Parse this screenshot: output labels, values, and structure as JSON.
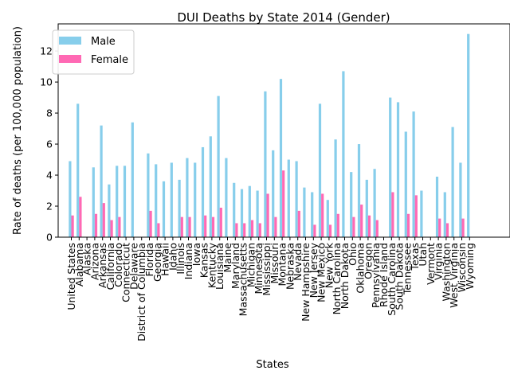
{
  "chart_data": {
    "type": "bar",
    "title": "DUI Deaths by State 2014 (Gender)",
    "xlabel": "States",
    "ylabel": "Rate of deaths (per 100,000 population)",
    "ylim": [
      0,
      13.75
    ],
    "yticks": [
      "0",
      "2",
      "4",
      "6",
      "8",
      "10",
      "12"
    ],
    "legend_position": "top-left",
    "grid": false,
    "colors": {
      "male": "#87ceeb",
      "female": "#ff69b4"
    },
    "categories": [
      "United States",
      "Alabama",
      "Alaska",
      "Arizona",
      "Arkansas",
      "California",
      "Colorado",
      "Connecticut",
      "Delaware",
      "District of Columbia",
      "Florida",
      "Georgia",
      "Hawaii",
      "Idaho",
      "Illinois",
      "Indiana",
      "Iowa",
      "Kansas",
      "Kentucky",
      "Louisiana",
      "Maine",
      "Maryland",
      "Massachusetts",
      "Michigan",
      "Minnesota",
      "Mississippi",
      "Missouri",
      "Montana",
      "Nebraska",
      "Nevada",
      "New Hampshire",
      "New Jersey",
      "New Mexico",
      "New York",
      "North Carolina",
      "North Dakota",
      "Ohio",
      "Oklahoma",
      "Oregon",
      "Pennsylvania",
      "Rhode Island",
      "South Carolina",
      "South Dakota",
      "Tennessee",
      "Texas",
      "Utah",
      "Vermont",
      "Virginia",
      "Washington",
      "West Virginia",
      "Wisconsin",
      "Wyoming"
    ],
    "series": [
      {
        "name": "Male",
        "values": [
          4.9,
          8.6,
          0,
          4.5,
          7.2,
          3.4,
          4.6,
          4.6,
          7.4,
          0,
          5.4,
          4.7,
          3.6,
          4.8,
          3.7,
          5.1,
          4.8,
          5.8,
          6.5,
          9.1,
          5.1,
          3.5,
          3.1,
          3.3,
          3.0,
          9.4,
          5.6,
          10.2,
          5.0,
          4.9,
          3.2,
          2.9,
          8.6,
          2.4,
          6.3,
          10.7,
          4.2,
          6.0,
          3.7,
          4.4,
          0,
          9.0,
          8.7,
          6.8,
          8.1,
          3.0,
          0,
          3.9,
          2.9,
          7.1,
          4.8,
          13.1
        ]
      },
      {
        "name": "Female",
        "values": [
          1.4,
          2.6,
          0,
          1.5,
          2.2,
          1.1,
          1.3,
          0,
          0,
          0,
          1.7,
          0.9,
          0,
          0,
          1.3,
          1.3,
          0,
          1.4,
          1.3,
          1.9,
          0,
          0.9,
          0.9,
          1.1,
          0.9,
          2.8,
          1.3,
          4.3,
          0,
          1.7,
          0,
          0.8,
          2.8,
          0.8,
          1.5,
          0,
          1.3,
          2.1,
          1.4,
          1.1,
          0,
          2.9,
          0,
          1.5,
          2.7,
          0,
          0,
          1.2,
          0.9,
          0,
          1.2,
          0
        ]
      }
    ]
  }
}
